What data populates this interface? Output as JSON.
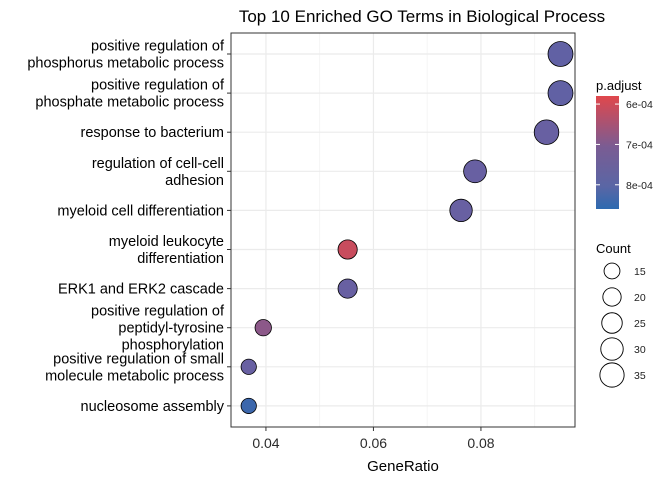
{
  "chart_data": {
    "type": "scatter",
    "title": "Top 10 Enriched GO Terms in Biological Process",
    "xlabel": "GeneRatio",
    "ylabel": "",
    "xlim": [
      0.0335,
      0.0975
    ],
    "xticks": [
      0.04,
      0.06,
      0.08
    ],
    "xtick_labels": [
      "0.04",
      "0.06",
      "0.08"
    ],
    "grid": true,
    "terms": [
      {
        "label": [
          "positive regulation of",
          "phosphorus metabolic process"
        ],
        "x": 0.0948,
        "count": 37,
        "p_adjust": 0.00079
      },
      {
        "label": [
          "positive regulation of",
          "phosphate metabolic process"
        ],
        "x": 0.0948,
        "count": 37,
        "p_adjust": 0.00079
      },
      {
        "label": [
          "response to bacterium"
        ],
        "x": 0.0922,
        "count": 36,
        "p_adjust": 0.00078
      },
      {
        "label": [
          "regulation of cell-cell",
          "adhesion"
        ],
        "x": 0.0789,
        "count": 31,
        "p_adjust": 0.00078
      },
      {
        "label": [
          "myeloid cell differentiation"
        ],
        "x": 0.0763,
        "count": 30,
        "p_adjust": 0.00078
      },
      {
        "label": [
          "myeloid leukocyte",
          "differentiation"
        ],
        "x": 0.0552,
        "count": 22,
        "p_adjust": 0.00062
      },
      {
        "label": [
          "ERK1 and ERK2 cascade"
        ],
        "x": 0.0552,
        "count": 22,
        "p_adjust": 0.00078
      },
      {
        "label": [
          "positive regulation of",
          "peptidyl-tyrosine",
          "phosphorylation"
        ],
        "x": 0.0395,
        "count": 16,
        "p_adjust": 0.00072
      },
      {
        "label": [
          "positive regulation of small",
          "molecule metabolic process"
        ],
        "x": 0.0368,
        "count": 14,
        "p_adjust": 0.00078
      },
      {
        "label": [
          "nucleosome assembly"
        ],
        "x": 0.0368,
        "count": 14,
        "p_adjust": 0.00084
      }
    ],
    "color_legend": {
      "title": "p.adjust",
      "range": [
        0.00058,
        0.00086
      ],
      "ticks": [
        0.0006,
        0.0007,
        0.0008
      ],
      "tick_labels": [
        "6e-04",
        "7e-04",
        "8e-04"
      ],
      "low_color": "#e0474c",
      "mid_color": "#6b5fa1",
      "high_color": "#2d6ab0"
    },
    "size_legend": {
      "title": "Count",
      "values": [
        15,
        20,
        25,
        30,
        35
      ],
      "labels": [
        "15",
        "20",
        "25",
        "30",
        "35"
      ]
    },
    "colors": {
      "panel_border": "#333333",
      "grid": "#ebebeb",
      "point_stroke": "#000000"
    }
  }
}
